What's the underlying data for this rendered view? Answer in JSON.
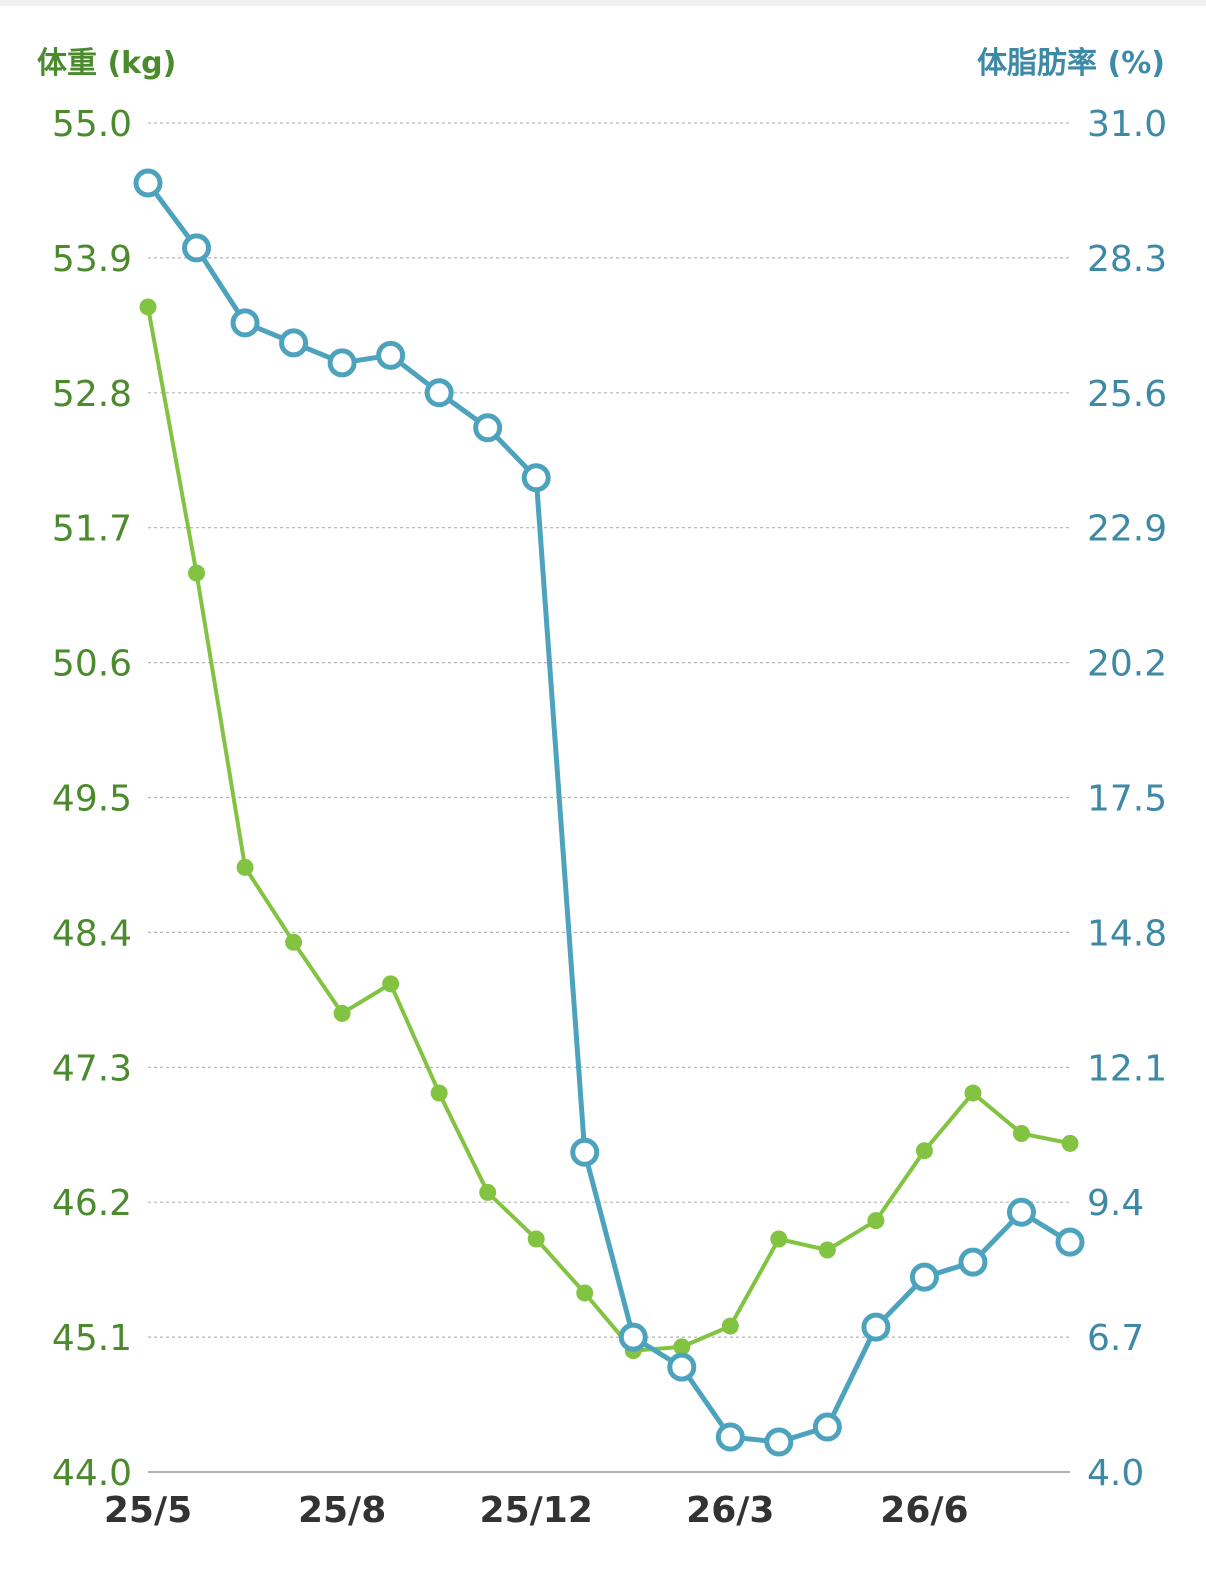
{
  "chart_data": {
    "type": "line",
    "left_axis": {
      "label": "体重 (kg)",
      "ticks": [
        "55.0",
        "53.9",
        "52.8",
        "51.7",
        "50.6",
        "49.5",
        "48.4",
        "47.3",
        "46.2",
        "45.1",
        "44.0"
      ],
      "range": [
        44.0,
        55.0
      ],
      "color": "#4c8a2e"
    },
    "right_axis": {
      "label": "体脂肪率 (%)",
      "ticks": [
        "31.0",
        "28.3",
        "25.6",
        "22.9",
        "20.2",
        "17.5",
        "14.8",
        "12.1",
        "9.4",
        "6.7",
        "4.0"
      ],
      "range": [
        4.0,
        31.0
      ],
      "color": "#3e8aa6"
    },
    "x_axis": {
      "tick_labels": [
        "25/5",
        "25/8",
        "25/12",
        "26/3",
        "26/6"
      ],
      "tick_indices": [
        0,
        4,
        8,
        12,
        16
      ]
    },
    "grid": true,
    "series": [
      {
        "name": "体重 (kg)",
        "axis": "left",
        "color": "#82c341",
        "marker": "filled",
        "values": [
          53.5,
          51.33,
          48.93,
          48.32,
          47.74,
          47.98,
          47.09,
          46.28,
          45.9,
          45.46,
          44.99,
          45.02,
          45.19,
          45.9,
          45.81,
          46.05,
          46.62,
          47.09,
          46.76,
          46.68
        ]
      },
      {
        "name": "体脂肪率 (%)",
        "axis": "right",
        "color": "#4da3bd",
        "marker": "open",
        "values": [
          29.8,
          28.5,
          27.0,
          26.6,
          26.2,
          26.35,
          25.6,
          24.9,
          23.9,
          10.4,
          6.7,
          6.1,
          4.7,
          4.6,
          4.9,
          6.9,
          7.9,
          8.2,
          9.2,
          8.6
        ]
      }
    ]
  }
}
